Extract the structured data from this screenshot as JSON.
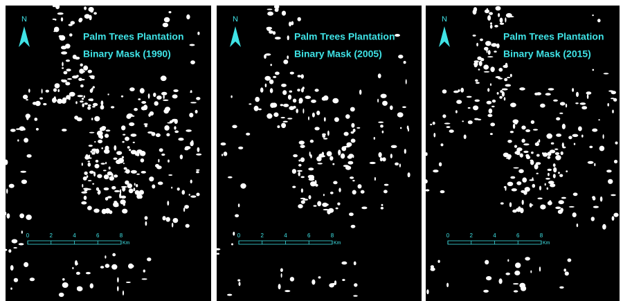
{
  "panels": [
    {
      "north": "N",
      "title_line1": "Palm Trees Plantation",
      "title_line2": "Binary Mask (1990)",
      "scale_labels": [
        "0",
        "2",
        "4",
        "6",
        "8"
      ],
      "scale_unit": "Km"
    },
    {
      "north": "N",
      "title_line1": "Palm Trees Plantation",
      "title_line2": "Binary Mask (2005)",
      "scale_labels": [
        "0",
        "2",
        "4",
        "6",
        "8"
      ],
      "scale_unit": "Km"
    },
    {
      "north": "N",
      "title_line1": "Palm Trees Plantation",
      "title_line2": "Binary Mask (2015)",
      "scale_labels": [
        "0",
        "2",
        "4",
        "6",
        "8"
      ],
      "scale_unit": "Km"
    }
  ]
}
